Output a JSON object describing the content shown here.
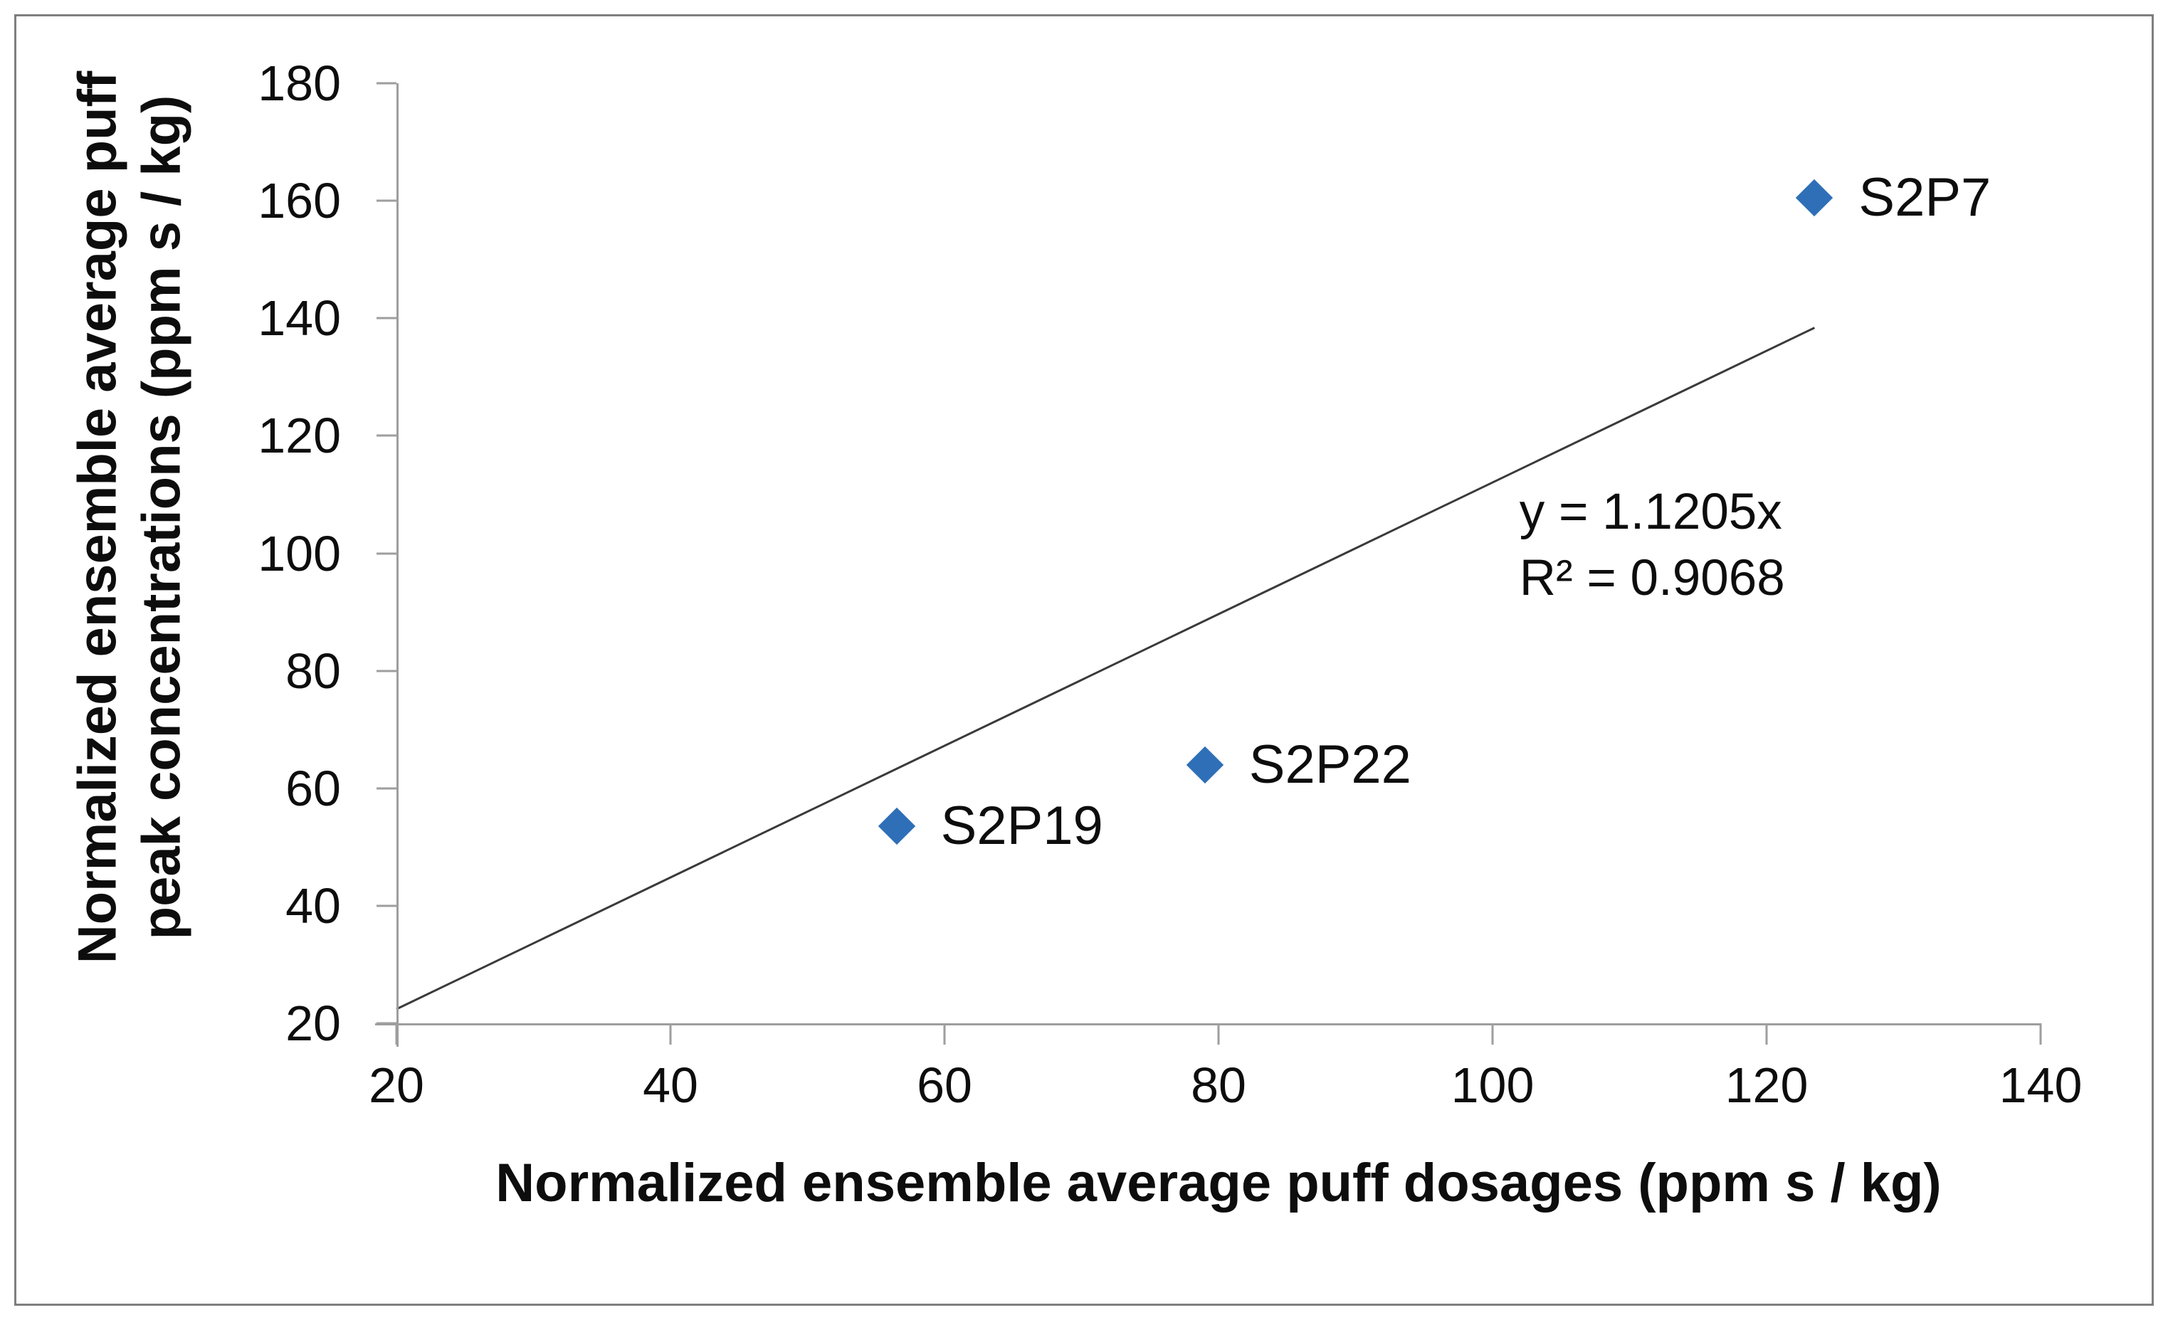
{
  "figure": {
    "background_color": "#ffffff",
    "border_color": "#7f7f7f"
  },
  "chart_data": {
    "type": "scatter",
    "title": "",
    "xlabel": "Normalized ensemble average puff dosages (ppm s / kg)",
    "ylabel": "Normalized ensemble average puff peak concentrations (ppm s / kg)",
    "ylabel_lines": [
      "Normalized ensemble average puff",
      "peak concentrations (ppm s / kg)"
    ],
    "xlim": [
      20,
      140
    ],
    "ylim": [
      20,
      180
    ],
    "x_ticks": [
      20,
      40,
      60,
      80,
      100,
      120,
      140
    ],
    "y_ticks": [
      20,
      40,
      60,
      80,
      100,
      120,
      140,
      160,
      180
    ],
    "grid": false,
    "legend_position": "none",
    "marker_style": "diamond",
    "marker_color": "#2e6fb7",
    "trendline_color": "#3a3a3a",
    "axis_color": "#9e9e9e",
    "points": [
      {
        "label": "S2P19",
        "x": 56.5,
        "y": 53.5
      },
      {
        "label": "S2P22",
        "x": 79,
        "y": 64
      },
      {
        "label": "S2P7",
        "x": 123.5,
        "y": 160.5
      }
    ],
    "trendline": {
      "equation": "y = 1.1205x",
      "r_squared": "R² = 0.9068",
      "slope": 1.1205,
      "x_start": 20,
      "x_end": 123.5
    }
  }
}
